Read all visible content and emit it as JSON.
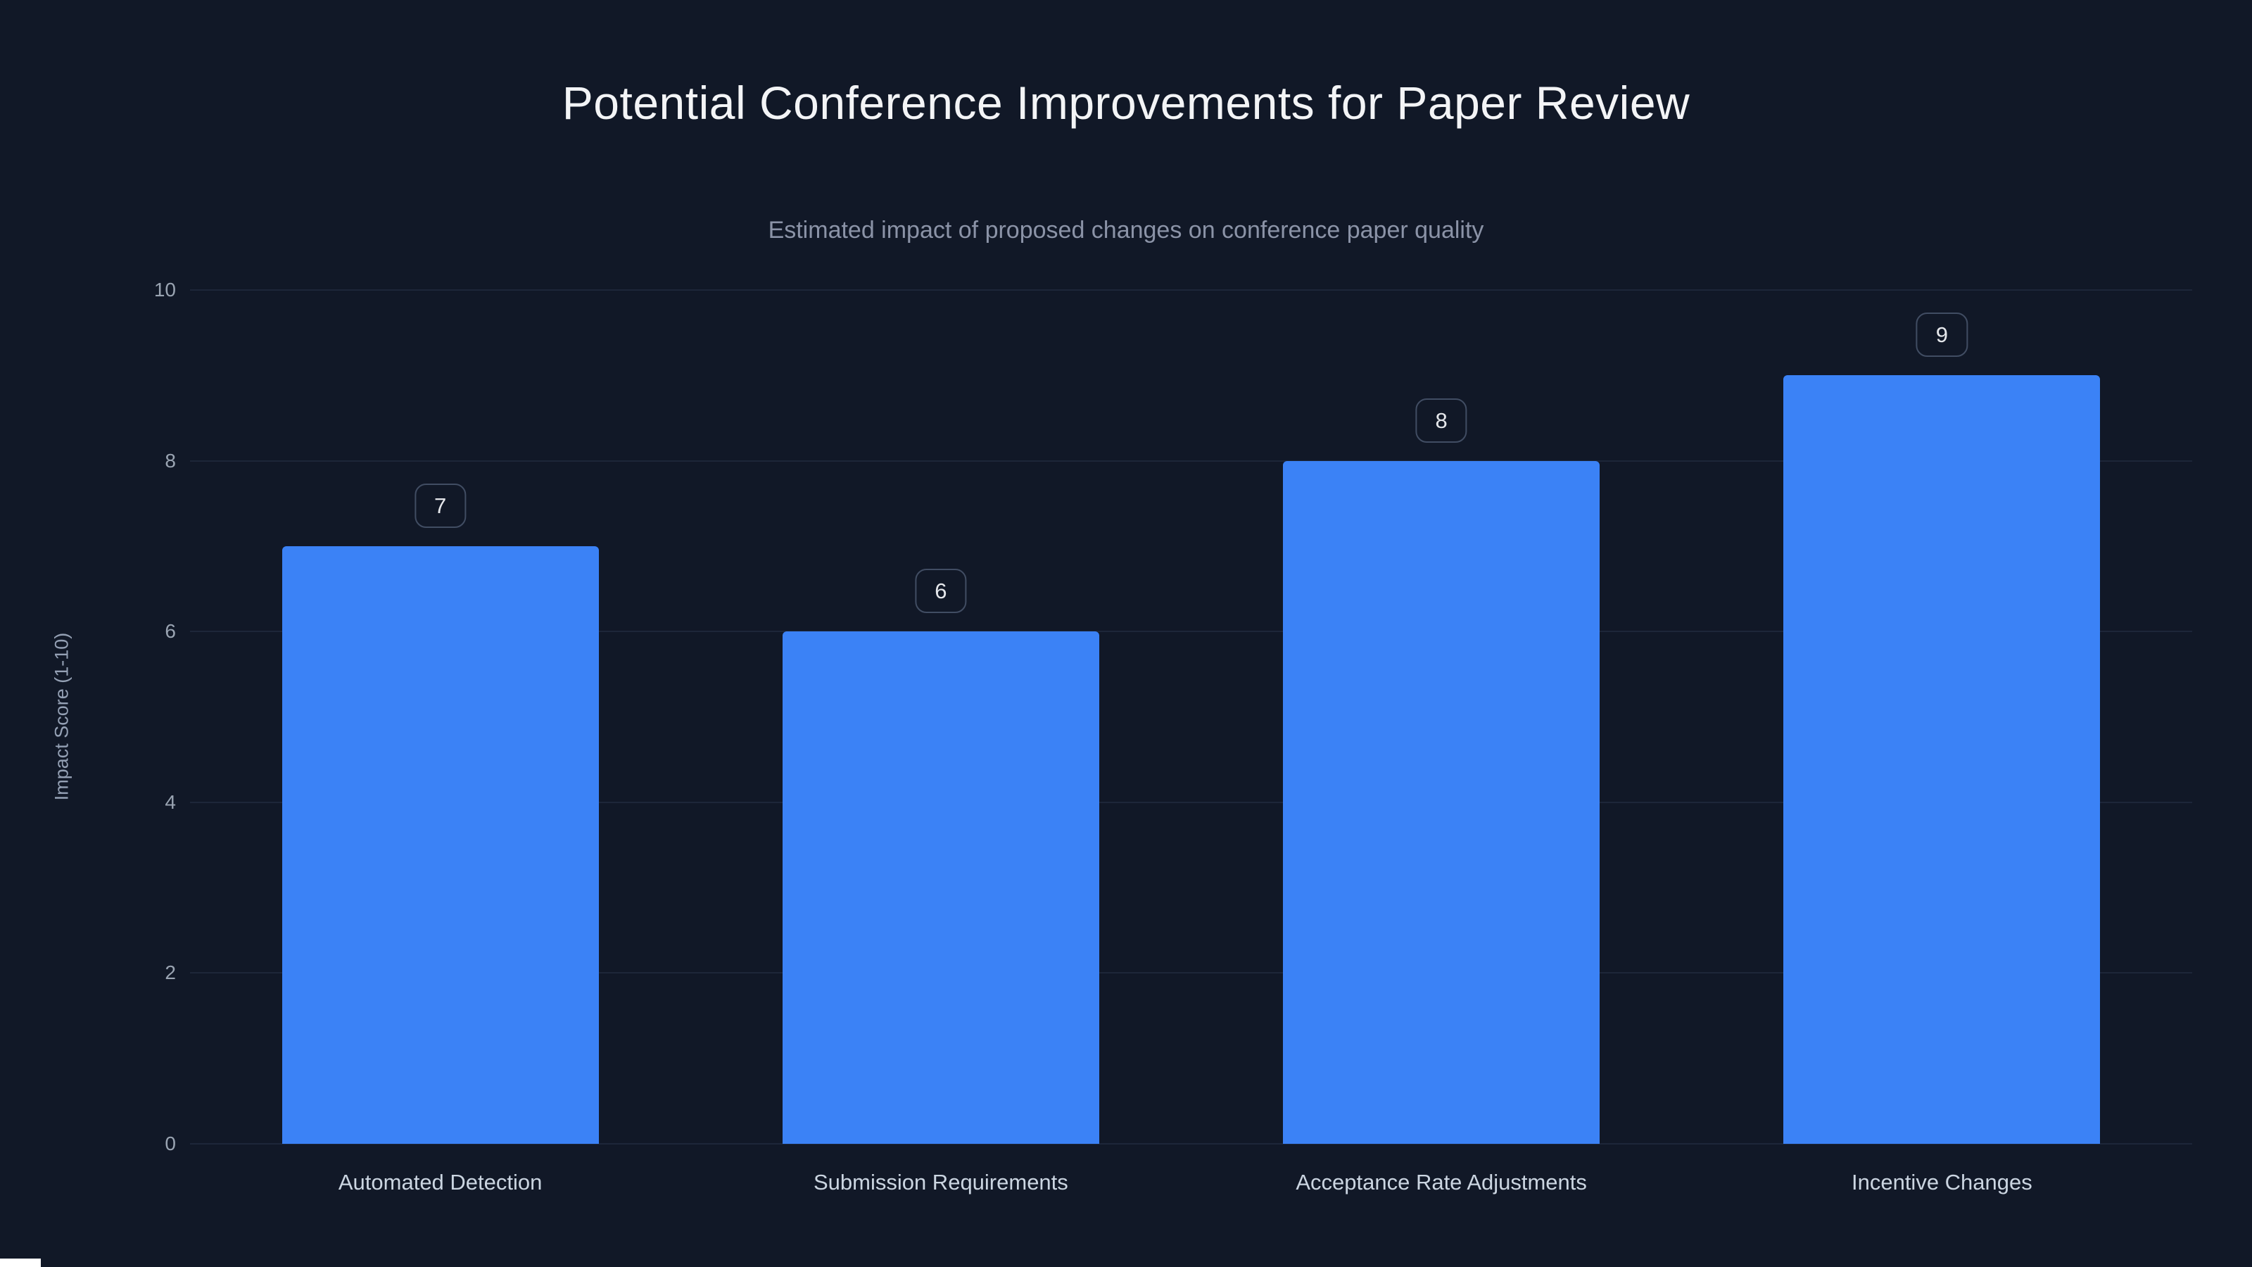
{
  "page": {
    "background": "#111827"
  },
  "chart_data": {
    "type": "bar",
    "title": "Potential Conference Improvements for Paper Review",
    "subtitle": "Estimated impact of proposed changes on conference paper quality",
    "categories": [
      "Automated Detection",
      "Submission Requirements",
      "Acceptance Rate Adjustments",
      "Incentive Changes"
    ],
    "values": [
      7,
      6,
      8,
      9
    ],
    "value_labels": [
      "7",
      "6",
      "8",
      "9"
    ],
    "xlabel": "",
    "ylabel": "Impact Score (1-10)",
    "ylim": [
      0,
      10
    ],
    "yticks": [
      "0",
      "2",
      "4",
      "6",
      "8",
      "10"
    ],
    "ytick_values": [
      0,
      2,
      4,
      6,
      8,
      10
    ],
    "grid": true,
    "legend": false,
    "colors": {
      "bar": "#3b82f6",
      "grid": "#1d2639",
      "background": "#111827",
      "title": "#f3f4f6",
      "subtitle": "#8b93a7",
      "tick_label": "#9aa4b2",
      "category_label": "#cbd5e1",
      "badge_border": "#414d63",
      "badge_text": "#e5e7eb"
    }
  }
}
